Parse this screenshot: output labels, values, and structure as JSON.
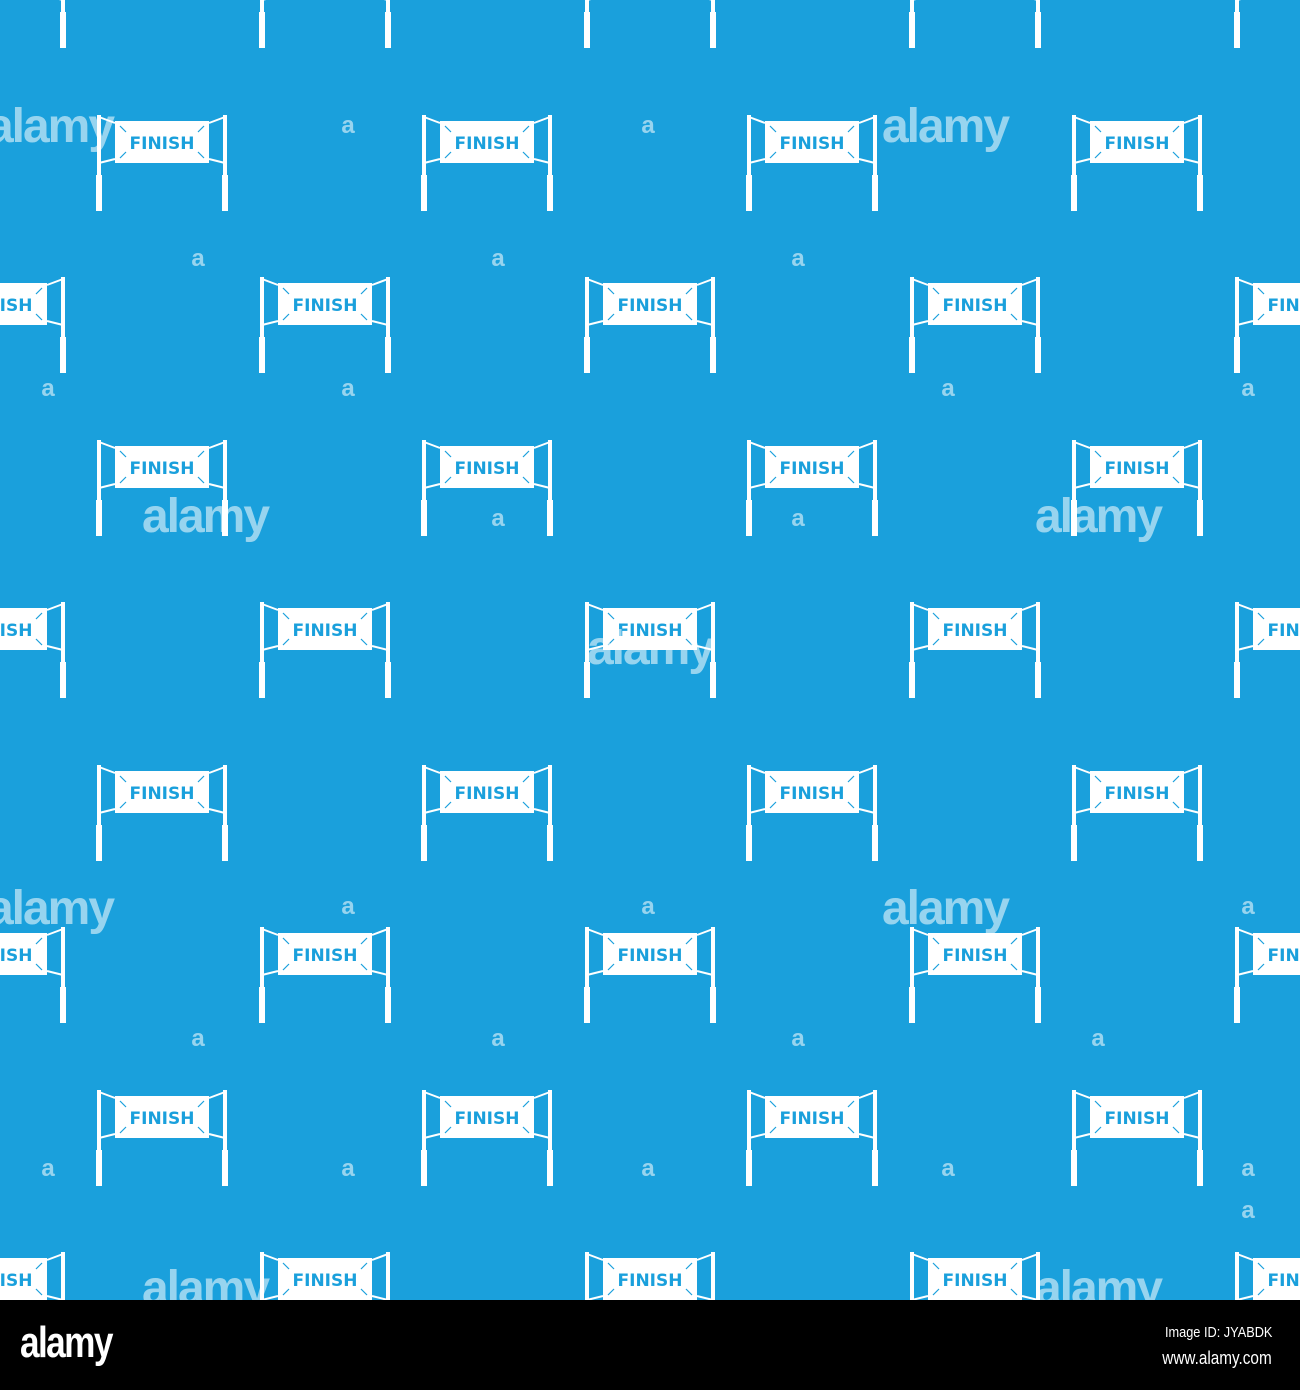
{
  "pattern": {
    "background_color": "#1aa0dc",
    "sign_color": "#ffffff",
    "sign_text": "FINISH",
    "icon": "finish-line-banner-icon",
    "watermark_text": "alamy",
    "watermark_small": "a"
  },
  "footer": {
    "logo": "alamy",
    "image_id": "Image ID: JYABDK",
    "website": "www.alamy.com"
  }
}
